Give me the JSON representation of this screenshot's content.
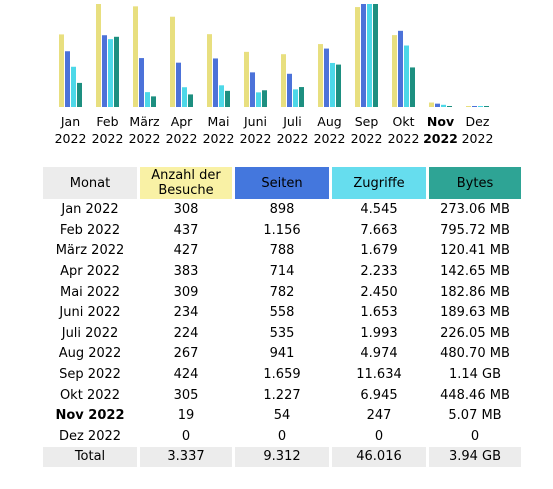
{
  "chart_data": {
    "type": "bar",
    "categories": [
      [
        "Jan",
        "2022"
      ],
      [
        "Feb",
        "2022"
      ],
      [
        "März",
        "2022"
      ],
      [
        "Apr",
        "2022"
      ],
      [
        "Mai",
        "2022"
      ],
      [
        "Juni",
        "2022"
      ],
      [
        "Juli",
        "2022"
      ],
      [
        "Aug",
        "2022"
      ],
      [
        "Sep",
        "2022"
      ],
      [
        "Okt",
        "2022"
      ],
      [
        "Nov",
        "2022"
      ],
      [
        "Dez",
        "2022"
      ]
    ],
    "highlight_index": 10,
    "series": [
      {
        "name": "Anzahl der Besuche",
        "values": [
          308,
          437,
          427,
          383,
          309,
          234,
          224,
          267,
          424,
          305,
          19,
          0
        ],
        "color": "#e8df7f"
      },
      {
        "name": "Seiten",
        "values": [
          898,
          1156,
          788,
          714,
          782,
          558,
          535,
          941,
          1659,
          1227,
          54,
          0
        ],
        "color": "#4c72d9"
      },
      {
        "name": "Zugriffe",
        "values": [
          4545,
          7663,
          1679,
          2233,
          2450,
          1653,
          1993,
          4974,
          11634,
          6945,
          247,
          0
        ],
        "color": "#4dd8e8"
      },
      {
        "name": "Bytes",
        "values": [
          273.06,
          795.72,
          120.41,
          142.65,
          182.86,
          189.63,
          226.05,
          480.7,
          1167.36,
          448.46,
          5.07,
          0
        ],
        "color": "#1d8f80"
      }
    ]
  },
  "table": {
    "headers": {
      "month": "Monat",
      "visits": "Anzahl der Besuche",
      "pages": "Seiten",
      "hits": "Zugriffe",
      "bytes": "Bytes"
    },
    "rows": [
      {
        "month": "Jan 2022",
        "visits": "308",
        "pages": "898",
        "hits": "4.545",
        "bytes": "273.06 MB"
      },
      {
        "month": "Feb 2022",
        "visits": "437",
        "pages": "1.156",
        "hits": "7.663",
        "bytes": "795.72 MB"
      },
      {
        "month": "März 2022",
        "visits": "427",
        "pages": "788",
        "hits": "1.679",
        "bytes": "120.41 MB"
      },
      {
        "month": "Apr 2022",
        "visits": "383",
        "pages": "714",
        "hits": "2.233",
        "bytes": "142.65 MB"
      },
      {
        "month": "Mai 2022",
        "visits": "309",
        "pages": "782",
        "hits": "2.450",
        "bytes": "182.86 MB"
      },
      {
        "month": "Juni 2022",
        "visits": "234",
        "pages": "558",
        "hits": "1.653",
        "bytes": "189.63 MB"
      },
      {
        "month": "Juli 2022",
        "visits": "224",
        "pages": "535",
        "hits": "1.993",
        "bytes": "226.05 MB"
      },
      {
        "month": "Aug 2022",
        "visits": "267",
        "pages": "941",
        "hits": "4.974",
        "bytes": "480.70 MB"
      },
      {
        "month": "Sep 2022",
        "visits": "424",
        "pages": "1.659",
        "hits": "11.634",
        "bytes": "1.14 GB"
      },
      {
        "month": "Okt 2022",
        "visits": "305",
        "pages": "1.227",
        "hits": "6.945",
        "bytes": "448.46 MB"
      },
      {
        "month": "Nov 2022",
        "visits": "19",
        "pages": "54",
        "hits": "247",
        "bytes": "5.07 MB"
      },
      {
        "month": "Dez 2022",
        "visits": "0",
        "pages": "0",
        "hits": "0",
        "bytes": "0"
      }
    ],
    "total": {
      "month": "Total",
      "visits": "3.337",
      "pages": "9.312",
      "hits": "46.016",
      "bytes": "3.94 GB"
    }
  }
}
